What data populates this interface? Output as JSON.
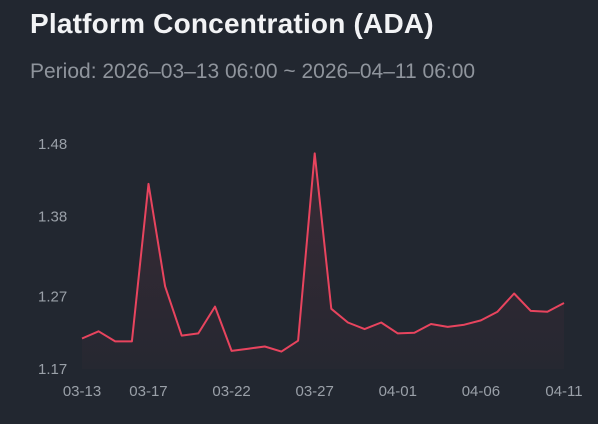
{
  "chart_data": {
    "type": "line",
    "title": "Platform Concentration (ADA)",
    "subtitle": "Period: 2026–03–13 06:00 ~ 2026–04–11 06:00",
    "xlabel": "",
    "ylabel": "",
    "ylim": [
      1.17,
      1.48
    ],
    "yticks": [
      "1.48",
      "1.38",
      "1.27",
      "1.17"
    ],
    "xticks": [
      "03-13",
      "03-17",
      "03-22",
      "03-27",
      "04-01",
      "04-06",
      "04-11"
    ],
    "grid": false,
    "line_color": "#e8445e",
    "series": [
      {
        "name": "",
        "x": [
          "03-13",
          "03-14",
          "03-15",
          "03-16",
          "03-17",
          "03-18",
          "03-19",
          "03-20",
          "03-21",
          "03-22",
          "03-23",
          "03-24",
          "03-25",
          "03-26",
          "03-27",
          "03-28",
          "03-29",
          "03-30",
          "03-31",
          "04-01",
          "04-02",
          "04-03",
          "04-04",
          "04-05",
          "04-06",
          "04-07",
          "04-08",
          "04-09",
          "04-10",
          "04-11"
        ],
        "values": [
          1.212,
          1.222,
          1.208,
          1.208,
          1.425,
          1.284,
          1.216,
          1.219,
          1.256,
          1.195,
          1.198,
          1.201,
          1.194,
          1.209,
          1.467,
          1.253,
          1.234,
          1.225,
          1.234,
          1.219,
          1.22,
          1.232,
          1.228,
          1.231,
          1.237,
          1.249,
          1.274,
          1.25,
          1.249,
          1.261
        ]
      }
    ]
  }
}
